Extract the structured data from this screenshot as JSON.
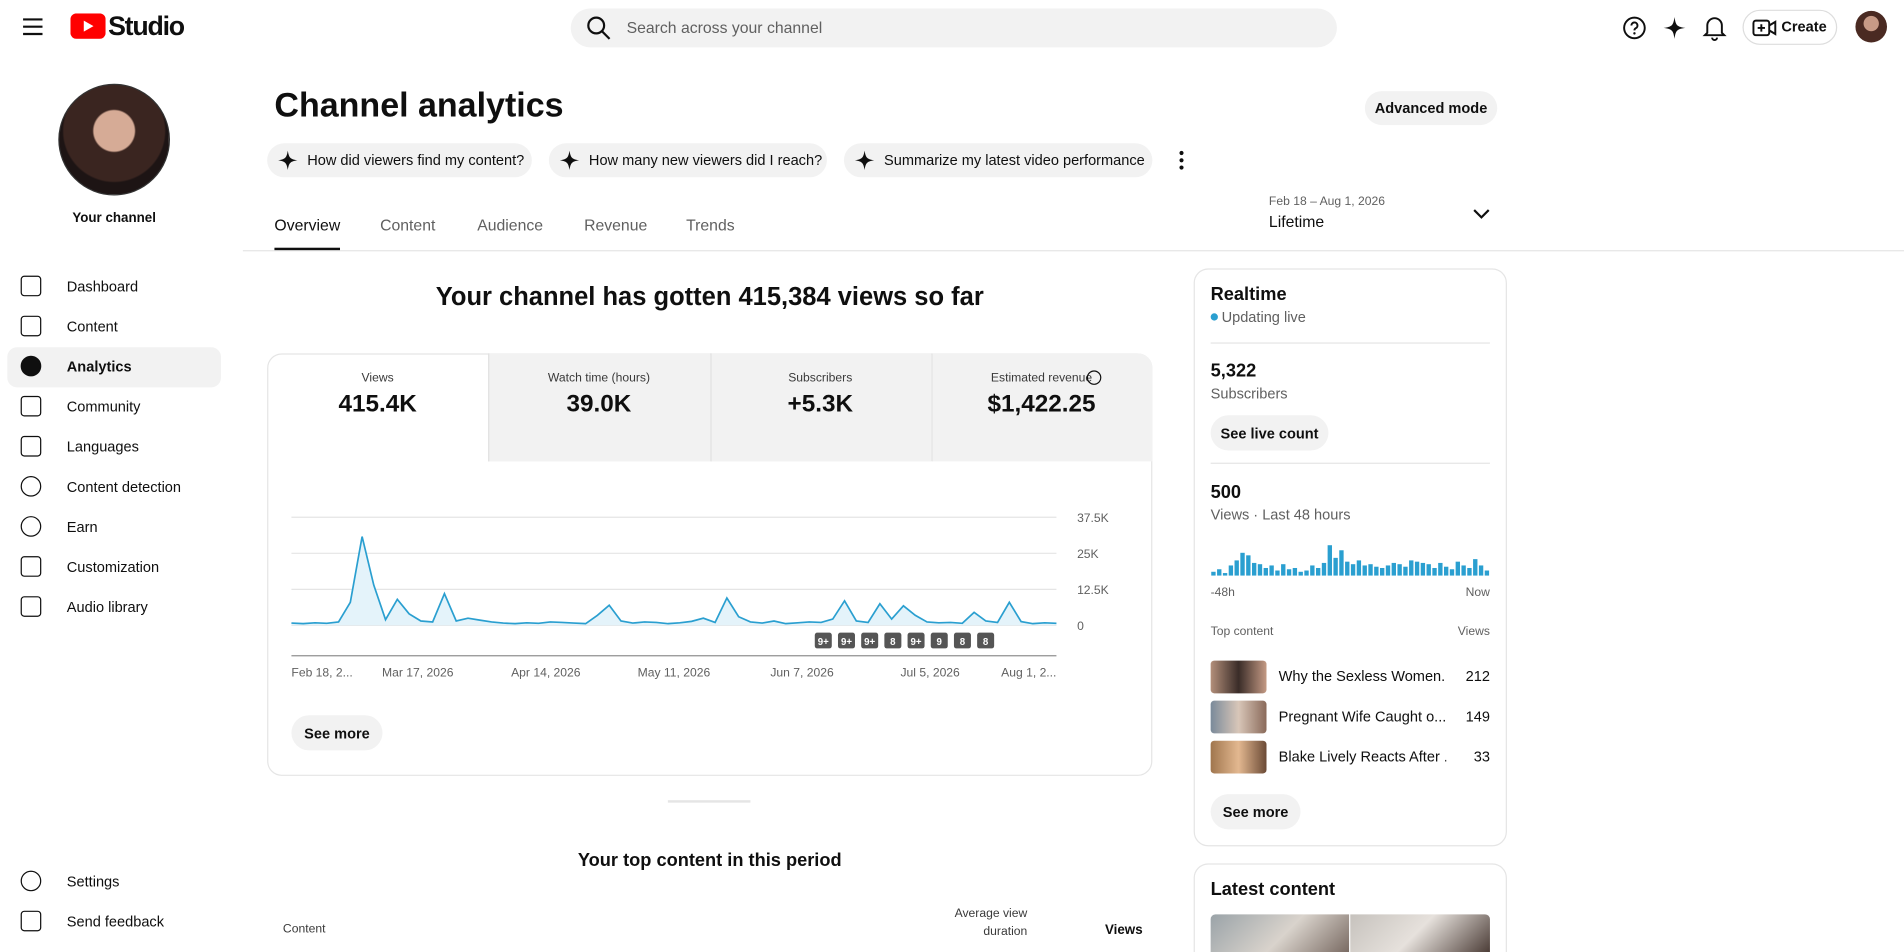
{
  "header": {
    "logo": "Studio",
    "search_placeholder": "Search across your channel",
    "create": "Create"
  },
  "sidebar": {
    "channel": "Your channel",
    "nav": [
      "Dashboard",
      "Content",
      "Analytics",
      "Community",
      "Languages",
      "Content detection",
      "Earn",
      "Customization",
      "Audio library"
    ],
    "active": 2,
    "footer": [
      "Settings",
      "Send feedback"
    ]
  },
  "page": {
    "title": "Channel analytics",
    "advanced": "Advanced mode",
    "prompts": [
      "How did viewers find my content?",
      "How many new viewers did I reach?",
      "Summarize my latest video performance"
    ],
    "tabs": [
      "Overview",
      "Content",
      "Audience",
      "Revenue",
      "Trends"
    ],
    "active_tab": 0,
    "date_range": "Feb 18 – Aug 1, 2026",
    "period": "Lifetime"
  },
  "summary": "Your channel has gotten 415,384 views so far",
  "metrics": [
    {
      "label": "Views",
      "value": "415.4K"
    },
    {
      "label": "Watch time (hours)",
      "value": "39.0K"
    },
    {
      "label": "Subscribers",
      "value": "+5.3K"
    },
    {
      "label": "Estimated revenue",
      "value": "$1,422.25"
    }
  ],
  "views_chart": {
    "type": "line",
    "color": "#2a9fd0",
    "values": [
      800,
      600,
      900,
      700,
      1200,
      8000,
      30800,
      14000,
      2000,
      9000,
      4000,
      1500,
      1200,
      11000,
      1500,
      2500,
      1800,
      1200,
      800,
      600,
      900,
      700,
      1200,
      1000,
      800,
      600,
      3500,
      7000,
      1500,
      800,
      1200,
      1000,
      600,
      900,
      1400,
      2500,
      1000,
      9500,
      3000,
      1200,
      800,
      1500,
      600,
      900,
      1200,
      1000,
      2200,
      8500,
      1500,
      1000,
      7500,
      2200,
      6800,
      3500,
      1200,
      900,
      1000,
      700,
      4500,
      1500,
      1000,
      8000,
      1300,
      600,
      900,
      700
    ],
    "ylim": [
      0,
      37500
    ],
    "yticks": [
      {
        "value": 0,
        "label": "0"
      },
      {
        "value": 12500,
        "label": "12.5K"
      },
      {
        "value": 25000,
        "label": "25K"
      },
      {
        "value": 37500,
        "label": "37.5K"
      }
    ],
    "x_labels": [
      "Feb 18, 2...",
      "Mar 17, 2026",
      "Apr 14, 2026",
      "May 11, 2026",
      "Jun 7, 2026",
      "Jul 5, 2026",
      "Aug 1, 2..."
    ],
    "badges": [
      "9+",
      "9+",
      "9+",
      "8",
      "9+",
      "9",
      "8",
      "8"
    ],
    "grid": true
  },
  "see_more": "See more",
  "top_content": {
    "title": "Your top content in this period",
    "columns": [
      "Content",
      "Average view duration",
      "Views"
    ]
  },
  "realtime": {
    "title": "Realtime",
    "status": "Updating live",
    "subscribers": "5,322",
    "subscribers_label": "Subscribers",
    "live_count": "See live count",
    "views": "500",
    "views_label": "Views · Last 48 hours",
    "chart": {
      "type": "bar",
      "color": "#2a9fd0",
      "values": [
        3,
        5,
        2,
        8,
        12,
        18,
        16,
        10,
        9,
        6,
        8,
        4,
        9,
        5,
        6,
        3,
        4,
        8,
        6,
        10,
        24,
        14,
        20,
        11,
        9,
        12,
        8,
        9,
        7,
        6,
        8,
        10,
        9,
        7,
        12,
        11,
        10,
        9,
        6,
        10,
        7,
        5,
        11,
        8,
        6,
        13,
        8,
        4
      ],
      "x_labels": [
        "-48h",
        "Now"
      ]
    },
    "top_label": "Top content",
    "views_col": "Views",
    "rows": [
      {
        "title": "Why the Sexless Women...",
        "views": "212"
      },
      {
        "title": "Pregnant Wife Caught o...",
        "views": "149"
      },
      {
        "title": "Blake Lively Reacts After ...",
        "views": "33"
      }
    ],
    "see_more": "See more"
  },
  "latest": {
    "title": "Latest content"
  }
}
